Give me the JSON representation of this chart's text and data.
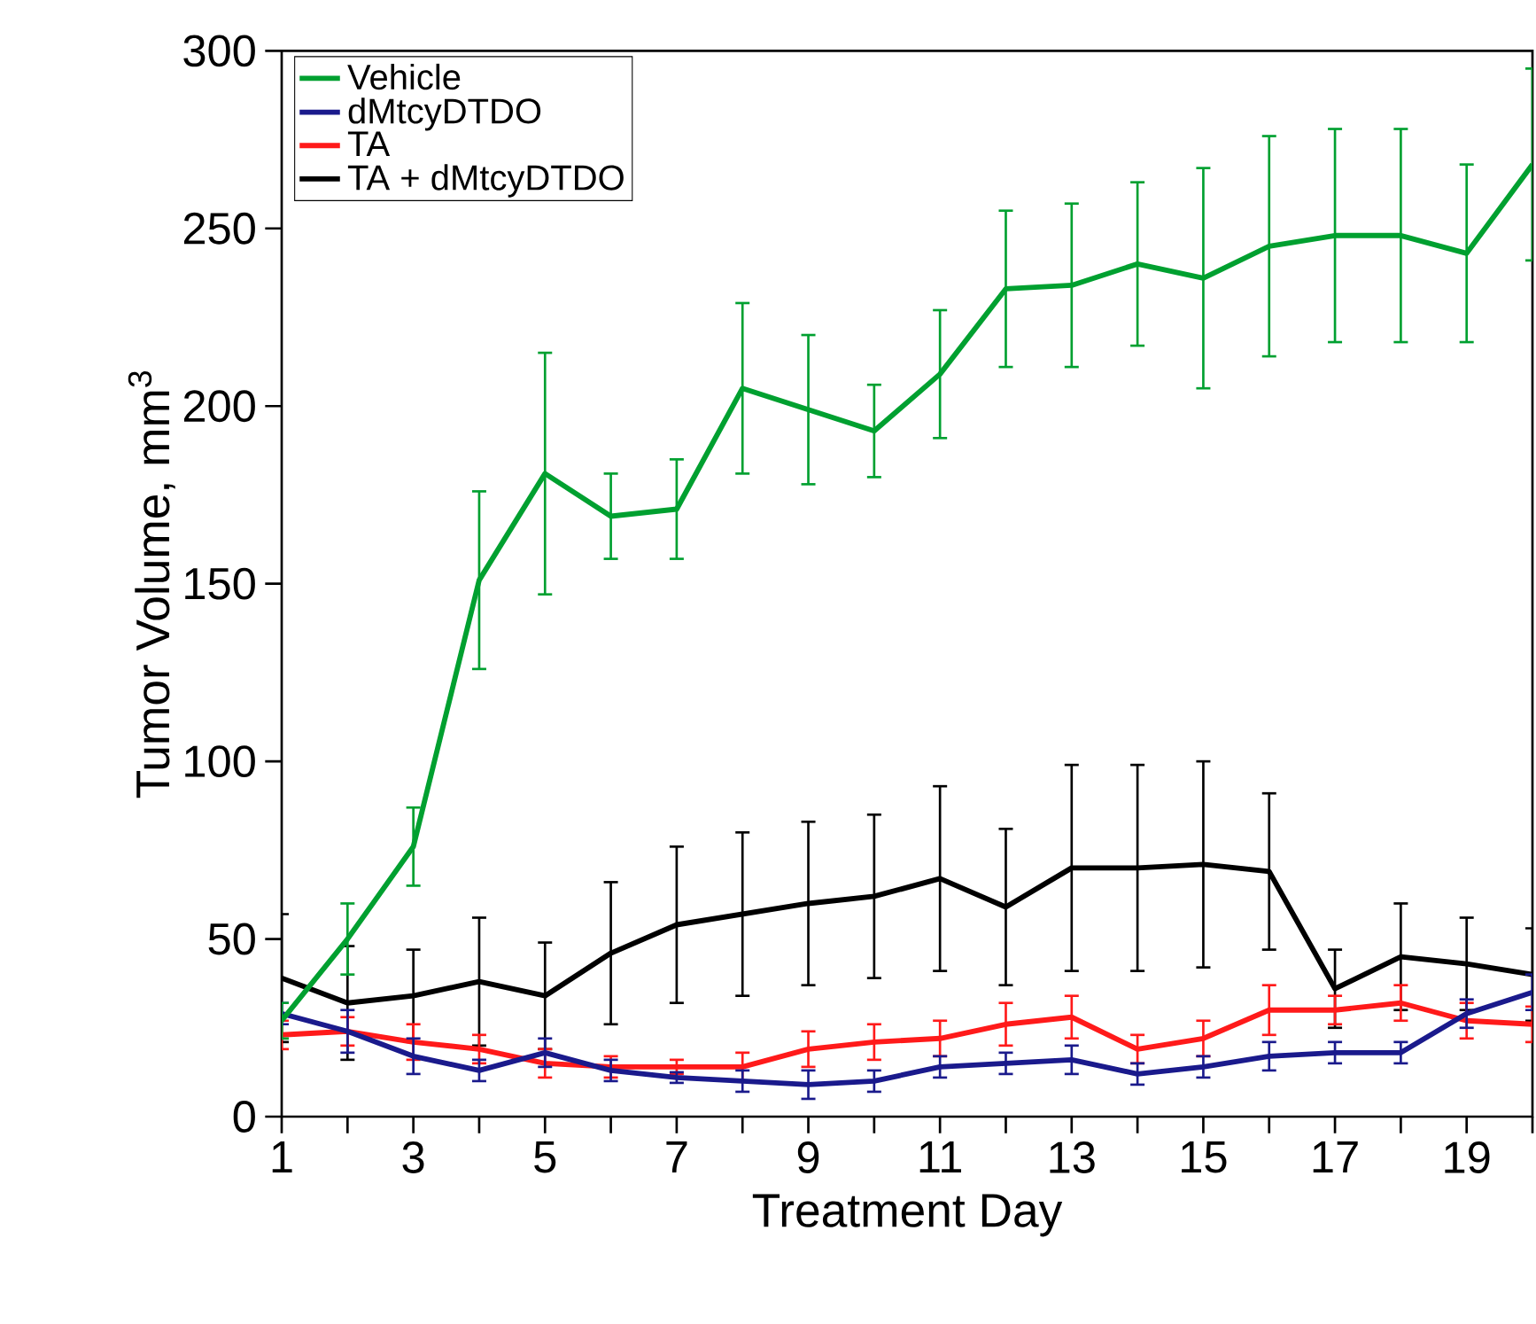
{
  "chart_data": {
    "type": "line",
    "xlabel": "Treatment Day",
    "ylabel": "Tumor Volume, mm$^{3}$",
    "x": [
      1,
      2,
      3,
      4,
      5,
      6,
      7,
      8,
      9,
      10,
      11,
      12,
      13,
      14,
      15,
      16,
      17,
      18,
      19,
      20
    ],
    "xlim": [
      1,
      20
    ],
    "ylim": [
      0,
      300
    ],
    "xticks": [
      1,
      {
        "value": 2,
        "label": null
      },
      3,
      {
        "value": 4,
        "label": null
      },
      5,
      {
        "value": 6,
        "label": null
      },
      7,
      {
        "value": 8,
        "label": null
      },
      9,
      {
        "value": 10,
        "label": null
      },
      11,
      {
        "value": 12,
        "label": null
      },
      13,
      {
        "value": 14,
        "label": null
      },
      15,
      {
        "value": 16,
        "label": null
      },
      17,
      {
        "value": 18,
        "label": null
      },
      19,
      {
        "value": 20,
        "label": null
      }
    ],
    "yticks": [
      0,
      50,
      100,
      150,
      200,
      250,
      300
    ],
    "legend": "top left",
    "grid": false,
    "marker": "none",
    "line_style": "solid",
    "series": [
      {
        "name": "Vehicle",
        "color": "#00a030",
        "values": [
          27,
          50,
          76,
          151,
          181,
          169,
          171,
          205,
          199,
          193,
          209,
          233,
          234,
          240,
          236,
          245,
          248,
          248,
          243,
          268
        ],
        "errors": [
          5,
          10,
          11,
          25,
          34,
          12,
          14,
          24,
          21,
          13,
          18,
          22,
          23,
          23,
          31,
          31,
          30,
          30,
          25,
          27
        ]
      },
      {
        "name": "dMtcyDTDO",
        "color": "#1a1a8c",
        "values": [
          29,
          24,
          17,
          13,
          18,
          13,
          11,
          10,
          9,
          10,
          14,
          15,
          16,
          12,
          14,
          17,
          18,
          18,
          29,
          35
        ],
        "errors": [
          3,
          6,
          5,
          3,
          4,
          3,
          1.5,
          3,
          4,
          3,
          3,
          3,
          4,
          3,
          3,
          4,
          3,
          3,
          4,
          5
        ]
      },
      {
        "name": "TA",
        "color": "#ff1a1a",
        "values": [
          23,
          24,
          21,
          19,
          15,
          14,
          14,
          14,
          19,
          21,
          22,
          26,
          28,
          19,
          22,
          30,
          30,
          32,
          27,
          26
        ],
        "errors": [
          4,
          4,
          5,
          4,
          4,
          3,
          2,
          4,
          5,
          5,
          5,
          6,
          6,
          4,
          5,
          7,
          4,
          5,
          5,
          5
        ]
      },
      {
        "name": "TA + dMtcyDTDO",
        "color": "#000000",
        "values": [
          39,
          32,
          34,
          38,
          34,
          46,
          54,
          57,
          60,
          62,
          67,
          59,
          70,
          70,
          71,
          69,
          36,
          45,
          43,
          40
        ],
        "errors": [
          18,
          16,
          13,
          18,
          15,
          20,
          22,
          23,
          23,
          23,
          26,
          22,
          29,
          29,
          29,
          22,
          11,
          15,
          13,
          13
        ]
      }
    ]
  }
}
